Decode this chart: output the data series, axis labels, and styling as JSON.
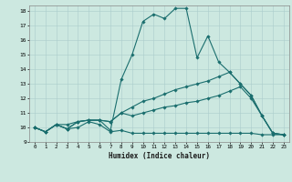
{
  "xlabel": "Humidex (Indice chaleur)",
  "ylabel": "",
  "background_color": "#cce8e0",
  "grid_color": "#aacccc",
  "line_color": "#1a6e6e",
  "xlim": [
    -0.5,
    23.5
  ],
  "ylim": [
    9,
    18.4
  ],
  "xticks": [
    0,
    1,
    2,
    3,
    4,
    5,
    6,
    7,
    8,
    9,
    10,
    11,
    12,
    13,
    14,
    15,
    16,
    17,
    18,
    19,
    20,
    21,
    22,
    23
  ],
  "yticks": [
    9,
    10,
    11,
    12,
    13,
    14,
    15,
    16,
    17,
    18
  ],
  "lines": [
    {
      "x": [
        0,
        1,
        2,
        3,
        4,
        5,
        6,
        7,
        8,
        9,
        10,
        11,
        12,
        13,
        14,
        15,
        16,
        17,
        18,
        19,
        20,
        21,
        22,
        23
      ],
      "y": [
        10.0,
        9.7,
        10.2,
        9.9,
        10.0,
        10.4,
        10.2,
        9.7,
        9.8,
        9.6,
        9.6,
        9.6,
        9.6,
        9.6,
        9.6,
        9.6,
        9.6,
        9.6,
        9.6,
        9.6,
        9.6,
        9.5,
        9.5,
        9.5
      ]
    },
    {
      "x": [
        0,
        1,
        2,
        3,
        4,
        5,
        6,
        7,
        8,
        9,
        10,
        11,
        12,
        13,
        14,
        15,
        16,
        17,
        18,
        19,
        20,
        21,
        22,
        23
      ],
      "y": [
        10.0,
        9.7,
        10.2,
        9.9,
        10.4,
        10.5,
        10.5,
        10.4,
        11.0,
        10.8,
        11.0,
        11.2,
        11.4,
        11.5,
        11.7,
        11.8,
        12.0,
        12.2,
        12.5,
        12.8,
        12.0,
        10.8,
        9.6,
        9.5
      ]
    },
    {
      "x": [
        0,
        1,
        2,
        3,
        4,
        5,
        6,
        7,
        8,
        9,
        10,
        11,
        12,
        13,
        14,
        15,
        16,
        17,
        18,
        19,
        20,
        21,
        22,
        23
      ],
      "y": [
        10.0,
        9.7,
        10.2,
        10.2,
        10.4,
        10.5,
        10.5,
        10.4,
        11.0,
        11.4,
        11.8,
        12.0,
        12.3,
        12.6,
        12.8,
        13.0,
        13.2,
        13.5,
        13.8,
        13.0,
        12.2,
        10.8,
        9.6,
        9.5
      ]
    },
    {
      "x": [
        0,
        1,
        2,
        3,
        4,
        5,
        6,
        7,
        8,
        9,
        10,
        11,
        12,
        13,
        14,
        15,
        16,
        17,
        18,
        19,
        20,
        21,
        22,
        23
      ],
      "y": [
        10.0,
        9.7,
        10.2,
        9.9,
        10.4,
        10.5,
        10.5,
        9.8,
        13.3,
        15.0,
        17.3,
        17.8,
        17.5,
        18.2,
        18.2,
        14.8,
        16.3,
        14.5,
        13.8,
        13.0,
        12.2,
        10.8,
        9.6,
        9.5
      ]
    }
  ]
}
